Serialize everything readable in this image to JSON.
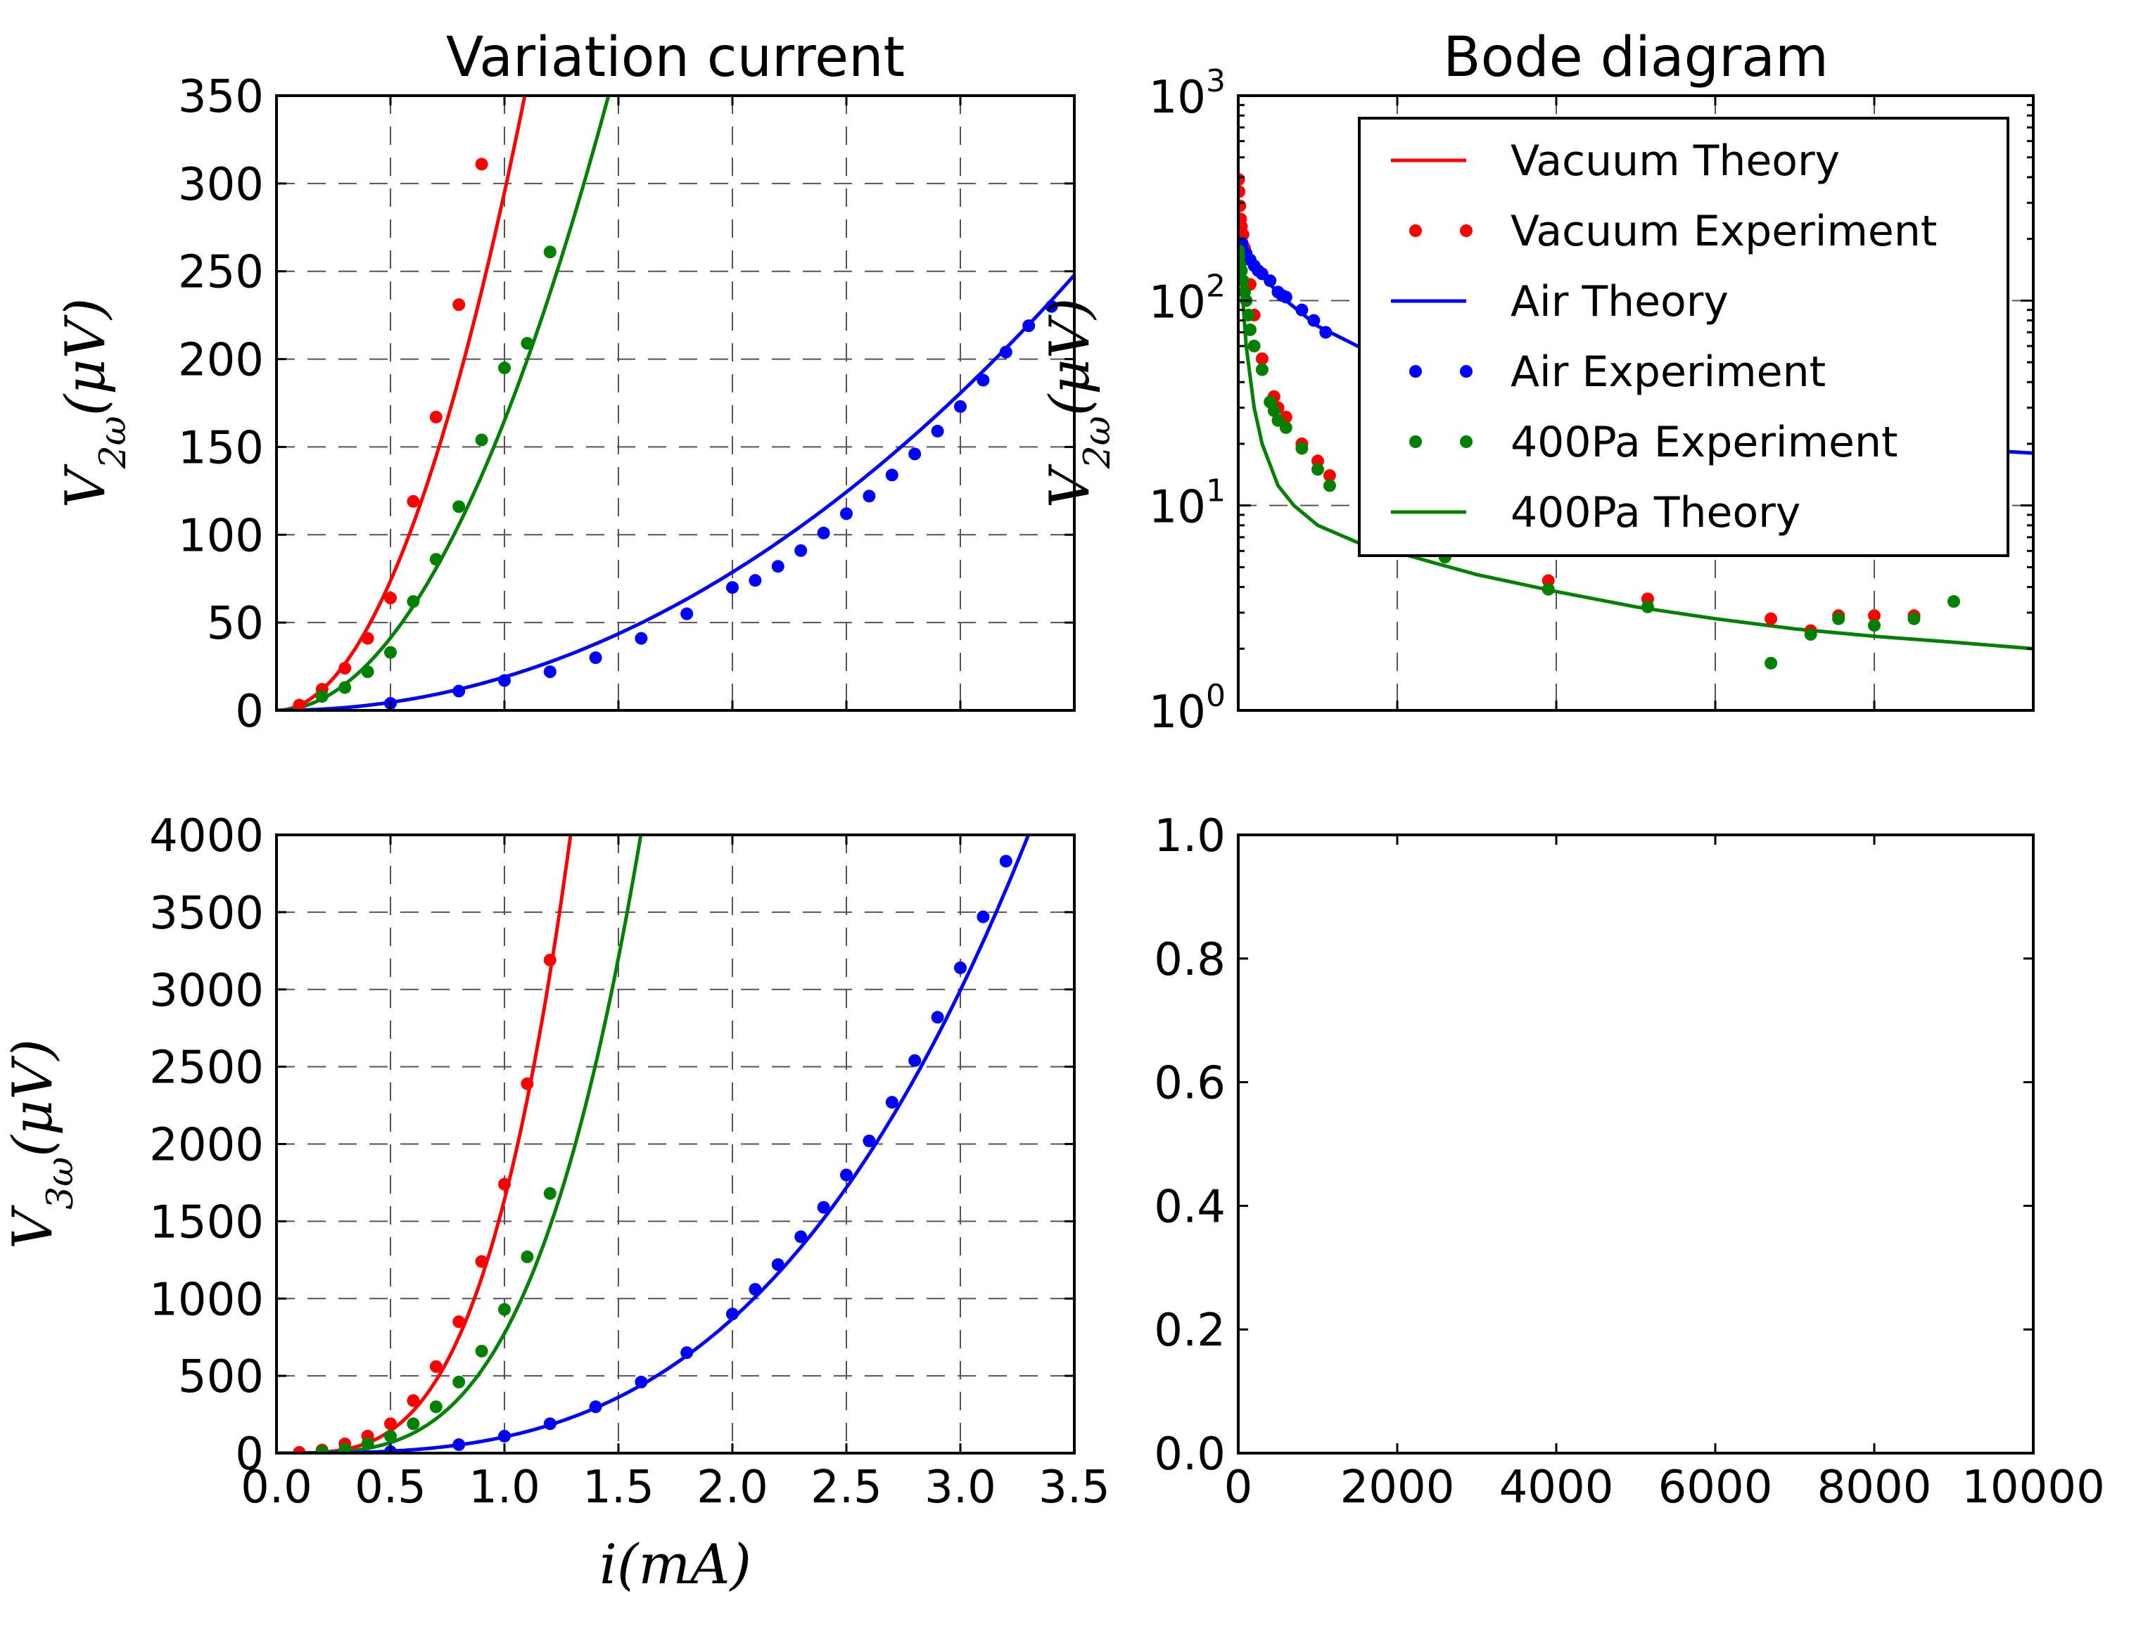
{
  "chart_data": [
    {
      "id": "top-left",
      "type": "line",
      "title": "Variation current",
      "ylabel": "V_{2ω}(μV)",
      "xlabel": "",
      "xlim": [
        0,
        3.5
      ],
      "ylim": [
        0,
        350
      ],
      "xticks": [
        "0.0",
        "0.5",
        "1.0",
        "1.5",
        "2.0",
        "2.5",
        "3.0",
        "3.5"
      ],
      "xtick_values": [
        0,
        0.5,
        1,
        1.5,
        2,
        2.5,
        3,
        3.5
      ],
      "show_xtick_labels": false,
      "yticks": [
        "0",
        "50",
        "100",
        "150",
        "200",
        "250",
        "300",
        "350"
      ],
      "ytick_values": [
        0,
        50,
        100,
        150,
        200,
        250,
        300,
        350
      ],
      "grid": true,
      "series": [
        {
          "color": "#ff0000",
          "style": "line",
          "coef": 295,
          "power": 2
        },
        {
          "color": "#008000",
          "style": "line",
          "coef": 165,
          "power": 2
        },
        {
          "color": "#0000ff",
          "style": "line",
          "coef": 19,
          "power": 2.05
        },
        {
          "color": "#ff0000",
          "style": "dots",
          "x": [
            0.1,
            0.2,
            0.3,
            0.4,
            0.5,
            0.6,
            0.7,
            0.8,
            0.9
          ],
          "y": [
            3,
            12,
            24,
            41,
            64,
            119,
            167,
            231,
            311
          ]
        },
        {
          "color": "#008000",
          "style": "dots",
          "x": [
            0.2,
            0.3,
            0.4,
            0.5,
            0.6,
            0.7,
            0.8,
            0.9,
            1.0,
            1.1,
            1.2
          ],
          "y": [
            8,
            13,
            22,
            33,
            62,
            86,
            116,
            154,
            195,
            209,
            261
          ]
        },
        {
          "color": "#0000ff",
          "style": "dots",
          "x": [
            0.5,
            0.8,
            1.0,
            1.2,
            1.4,
            1.6,
            1.8,
            2.0,
            2.1,
            2.2,
            2.3,
            2.4,
            2.5,
            2.6,
            2.7,
            2.8,
            2.9,
            3.0,
            3.1,
            3.2,
            3.3,
            3.4
          ],
          "y": [
            4,
            11,
            17,
            22,
            30,
            41,
            55,
            70,
            74,
            82,
            91,
            101,
            112,
            122,
            134,
            146,
            159,
            173,
            188,
            204,
            219,
            230
          ]
        }
      ]
    },
    {
      "id": "top-right",
      "type": "line",
      "title": "Bode diagram",
      "ylabel": "V_{2ω}(μV)",
      "xlabel": "",
      "xlim": [
        0,
        10000
      ],
      "ylim": [
        1,
        1000
      ],
      "yscale": "log",
      "xtick_values": [
        0,
        2000,
        4000,
        6000,
        8000,
        10000
      ],
      "show_xtick_labels": false,
      "yticks": [
        {
          "base": "10",
          "exp": "0",
          "value": 1
        },
        {
          "base": "10",
          "exp": "1",
          "value": 10
        },
        {
          "base": "10",
          "exp": "2",
          "value": 100
        },
        {
          "base": "10",
          "exp": "3",
          "value": 1000
        }
      ],
      "grid": true,
      "legend": {
        "placement": "upper-right",
        "entries": [
          {
            "label": "Vacuum Theory",
            "color": "#ff0000",
            "style": "line"
          },
          {
            "label": "Vacuum Experiment",
            "color": "#ff0000",
            "style": "dots"
          },
          {
            "label": "Air Theory",
            "color": "#0000ff",
            "style": "line"
          },
          {
            "label": "Air Experiment",
            "color": "#0000ff",
            "style": "dots"
          },
          {
            "label": "400Pa Experiment",
            "color": "#008000",
            "style": "dots"
          },
          {
            "label": "400Pa Theory",
            "color": "#008000",
            "style": "line"
          }
        ]
      },
      "series": [
        {
          "name": "Air Theory",
          "color": "#0000ff",
          "style": "line",
          "x": [
            5,
            100,
            200,
            400,
            600,
            1000,
            1500,
            2000,
            3000,
            4000,
            5000,
            6000,
            7000,
            8000,
            9000,
            10000
          ],
          "y": [
            170,
            165,
            150,
            120,
            100,
            75,
            60,
            50,
            38,
            31,
            27,
            24,
            22,
            20.5,
            19,
            18
          ]
        },
        {
          "name": "400Pa Theory",
          "color": "#008000",
          "style": "line",
          "x": [
            5,
            20,
            50,
            100,
            200,
            300,
            500,
            700,
            1000,
            1500,
            2000,
            2500,
            3000,
            4000,
            5000,
            6000,
            7000,
            8000,
            9000,
            10000
          ],
          "y": [
            210,
            170,
            110,
            60,
            30,
            20,
            12.5,
            10,
            8,
            6.6,
            5.9,
            5.2,
            4.6,
            3.8,
            3.2,
            2.8,
            2.5,
            2.3,
            2.15,
            2.0
          ]
        },
        {
          "name": "Vacuum Experiment",
          "color": "#ff0000",
          "style": "dots",
          "x": [
            5,
            10,
            20,
            30,
            40,
            60,
            80,
            100,
            150,
            200,
            300,
            450,
            500,
            600,
            800,
            1000,
            1150,
            1700,
            2600,
            3900,
            5150,
            6700,
            7200,
            7550,
            8000,
            8500
          ],
          "y": [
            390,
            340,
            290,
            250,
            230,
            210,
            180,
            160,
            120,
            85,
            52,
            34,
            30,
            27,
            20,
            16.5,
            14,
            9,
            6,
            4.3,
            3.5,
            2.8,
            2.45,
            2.9,
            2.9,
            2.9
          ]
        },
        {
          "name": "Air Experiment",
          "color": "#0000ff",
          "style": "dots",
          "x": [
            50,
            100,
            150,
            200,
            250,
            300,
            400,
            500,
            550,
            600,
            800,
            950,
            1100
          ],
          "y": [
            190,
            170,
            158,
            148,
            140,
            135,
            125,
            110,
            106,
            104,
            90,
            80,
            70
          ]
        },
        {
          "name": "400Pa Experiment",
          "color": "#008000",
          "style": "dots",
          "x": [
            5,
            10,
            20,
            40,
            60,
            80,
            100,
            130,
            150,
            200,
            300,
            400,
            450,
            500,
            600,
            800,
            1000,
            1150,
            2600,
            3900,
            5150,
            6700,
            7200,
            7550,
            8000,
            8500,
            9000
          ],
          "y": [
            175,
            165,
            150,
            140,
            125,
            110,
            100,
            85,
            72,
            60,
            46,
            32,
            29,
            26,
            24,
            19,
            15,
            12.5,
            5.6,
            3.9,
            3.2,
            1.7,
            2.35,
            2.8,
            2.6,
            2.8,
            3.4
          ]
        }
      ]
    },
    {
      "id": "bottom-left",
      "type": "line",
      "title": "",
      "ylabel": "V_{3ω}(μV)",
      "xlabel": "i(mA)",
      "xlim": [
        0,
        3.5
      ],
      "ylim": [
        0,
        4000
      ],
      "xticks": [
        "0.0",
        "0.5",
        "1.0",
        "1.5",
        "2.0",
        "2.5",
        "3.0",
        "3.5"
      ],
      "xtick_values": [
        0,
        0.5,
        1,
        1.5,
        2,
        2.5,
        3,
        3.5
      ],
      "show_xtick_labels": true,
      "yticks": [
        "0",
        "500",
        "1000",
        "1500",
        "2000",
        "2500",
        "3000",
        "3500",
        "4000"
      ],
      "ytick_values": [
        0,
        500,
        1000,
        1500,
        2000,
        2500,
        3000,
        3500,
        4000
      ],
      "grid": true,
      "series": [
        {
          "color": "#ff0000",
          "style": "line",
          "coef": 1640,
          "power": 3.5
        },
        {
          "color": "#008000",
          "style": "line",
          "coef": 775,
          "power": 3.5
        },
        {
          "color": "#0000ff",
          "style": "line",
          "coef": 105,
          "power": 3.05
        },
        {
          "color": "#ff0000",
          "style": "dots",
          "x": [
            0.1,
            0.2,
            0.3,
            0.4,
            0.5,
            0.6,
            0.7,
            0.8,
            0.9,
            1.0,
            1.1,
            1.2
          ],
          "y": [
            5,
            20,
            60,
            110,
            190,
            340,
            560,
            850,
            1240,
            1740,
            2390,
            3190
          ]
        },
        {
          "color": "#008000",
          "style": "dots",
          "x": [
            0.2,
            0.3,
            0.4,
            0.5,
            0.6,
            0.7,
            0.8,
            0.9,
            1.0,
            1.1,
            1.2
          ],
          "y": [
            10,
            25,
            60,
            110,
            190,
            300,
            460,
            660,
            930,
            1270,
            1680
          ]
        },
        {
          "color": "#0000ff",
          "style": "dots",
          "x": [
            0.5,
            0.8,
            1.0,
            1.2,
            1.4,
            1.6,
            1.8,
            2.0,
            2.1,
            2.2,
            2.3,
            2.4,
            2.5,
            2.6,
            2.7,
            2.8,
            2.9,
            3.0,
            3.1,
            3.2
          ],
          "y": [
            10,
            55,
            110,
            190,
            300,
            460,
            650,
            900,
            1060,
            1220,
            1400,
            1590,
            1800,
            2020,
            2270,
            2540,
            2820,
            3140,
            3470,
            3830
          ]
        }
      ]
    },
    {
      "id": "bottom-right",
      "type": "line",
      "title": "",
      "xlim": [
        0,
        10000
      ],
      "ylim": [
        0,
        1
      ],
      "xticks": [
        "0",
        "2000",
        "4000",
        "6000",
        "8000",
        "10000"
      ],
      "xtick_values": [
        0,
        2000,
        4000,
        6000,
        8000,
        10000
      ],
      "show_xtick_labels": true,
      "yticks": [
        "0.0",
        "0.2",
        "0.4",
        "0.6",
        "0.8",
        "1.0"
      ],
      "ytick_values": [
        0,
        0.2,
        0.4,
        0.6,
        0.8,
        1.0
      ],
      "grid": false,
      "series": []
    }
  ]
}
